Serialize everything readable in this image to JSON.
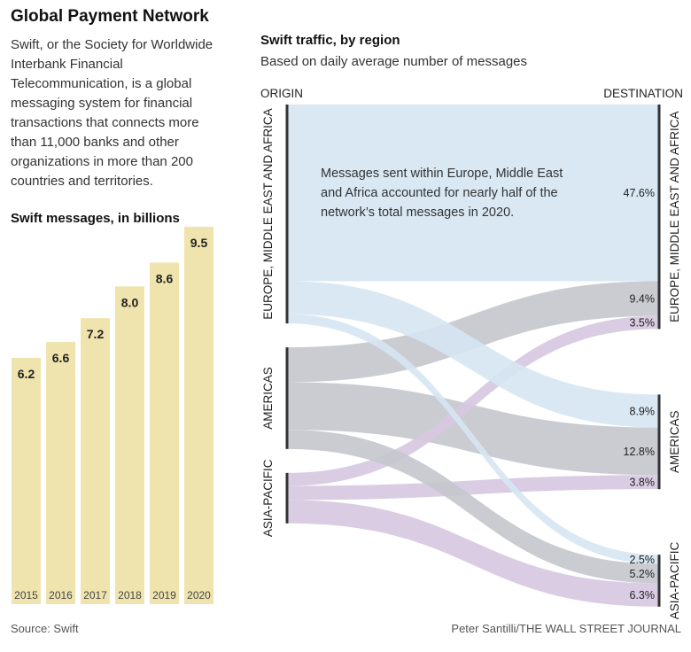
{
  "title": "Global Payment Network",
  "intro": "Swift, or the Society for Worldwide Interbank Financial Telecommunication, is a global messaging system for financial transactions that connects more than 11,000 banks and other organizations in more than 200 countries and territories.",
  "source": "Source: Swift",
  "credit": "Peter Santilli/THE WALL STREET JOURNAL",
  "annotation": "Messages sent within Europe, Middle East and Africa accounted for nearly half of the network’s total messages in 2020.",
  "colors": {
    "bar": "#f0e4ae",
    "emea_flow": "#d5e6f2",
    "americas_flow": "#c4c6cc",
    "asia_flow": "#d6c8e0",
    "node": "#333333"
  },
  "chart_data": [
    {
      "type": "bar",
      "title": "Swift messages, in billions",
      "categories": [
        "2015",
        "2016",
        "2017",
        "2018",
        "2019",
        "2020"
      ],
      "values": [
        6.2,
        6.6,
        7.2,
        8.0,
        8.6,
        9.5
      ],
      "value_labels": [
        "6.2",
        "6.6",
        "7.2",
        "8.0",
        "8.6",
        "9.5"
      ],
      "ylim": [
        0,
        10
      ],
      "grid": false
    },
    {
      "type": "sankey",
      "title": "Swift traffic, by region",
      "subtitle": "Based on daily average number of messages",
      "origin_label": "ORIGIN",
      "destination_label": "DESTINATION",
      "units": "percent of total messages",
      "nodes": [
        {
          "id": "emea",
          "name": "EUROPE, MIDDLE EAST AND AFRICA"
        },
        {
          "id": "americas",
          "name": "AMERICAS"
        },
        {
          "id": "asia",
          "name": "ASIA-PACIFIC"
        }
      ],
      "flows": [
        {
          "from": "emea",
          "to": "emea",
          "value": 47.6,
          "label": "47.6%"
        },
        {
          "from": "americas",
          "to": "emea",
          "value": 9.4,
          "label": "9.4%"
        },
        {
          "from": "asia",
          "to": "emea",
          "value": 3.5,
          "label": "3.5%"
        },
        {
          "from": "emea",
          "to": "americas",
          "value": 8.9,
          "label": "8.9%"
        },
        {
          "from": "americas",
          "to": "americas",
          "value": 12.8,
          "label": "12.8%"
        },
        {
          "from": "asia",
          "to": "americas",
          "value": 3.8,
          "label": "3.8%"
        },
        {
          "from": "emea",
          "to": "asia",
          "value": 2.5,
          "label": "2.5%"
        },
        {
          "from": "americas",
          "to": "asia",
          "value": 5.2,
          "label": "5.2%"
        },
        {
          "from": "asia",
          "to": "asia",
          "value": 6.3,
          "label": "6.3%"
        }
      ]
    }
  ]
}
